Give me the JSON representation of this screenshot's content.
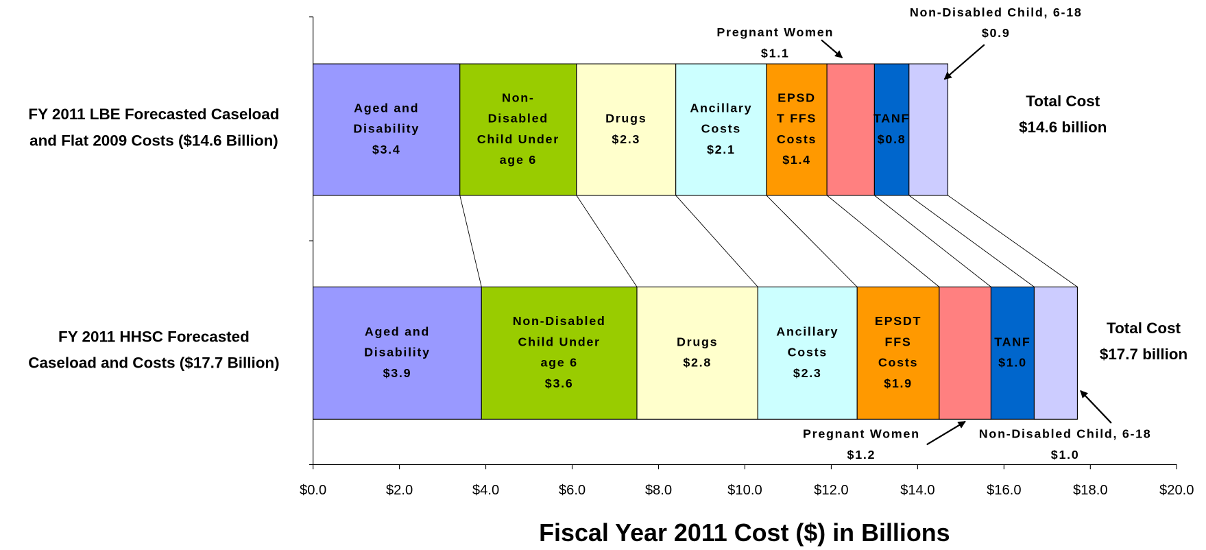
{
  "chart_data": {
    "type": "stacked-barh",
    "xlabel": "Fiscal Year 2011 Cost ($) in Billions",
    "categories": [
      [
        "FY 2011 LBE Forecasted Caseload",
        "and Flat 2009 Costs ($14.6 Billion)"
      ],
      [
        "FY 2011 HHSC Forecasted",
        "Caseload and Costs ($17.7 Billion)"
      ]
    ],
    "totals": [
      [
        "Total Cost",
        "$14.6 billion"
      ],
      [
        "Total Cost",
        "$17.7 billion"
      ]
    ],
    "series": [
      {
        "color": "#9999ff",
        "labels": [
          [
            "Aged and",
            "Disability"
          ],
          [
            "Aged and",
            "Disability"
          ]
        ],
        "values": [
          3.4,
          3.9
        ],
        "value_labels": [
          "$3.4",
          "$3.9"
        ]
      },
      {
        "color": "#99cc00",
        "labels": [
          [
            "Non-",
            "Disabled",
            "Child Under",
            "age 6"
          ],
          [
            "Non-Disabled",
            "Child Under",
            "age 6"
          ]
        ],
        "values": [
          2.7,
          3.6
        ],
        "value_labels": [
          null,
          "$3.6"
        ]
      },
      {
        "color": "#ffffcc",
        "labels": [
          [
            "Drugs"
          ],
          [
            "Drugs"
          ]
        ],
        "values": [
          2.3,
          2.8
        ],
        "value_labels": [
          "$2.3",
          "$2.8"
        ]
      },
      {
        "color": "#ccffff",
        "labels": [
          [
            "Ancillary",
            "Costs"
          ],
          [
            "Ancillary",
            "Costs"
          ]
        ],
        "values": [
          2.1,
          2.3
        ],
        "value_labels": [
          "$2.1",
          "$2.3"
        ]
      },
      {
        "color": "#ff9900",
        "labels": [
          [
            "EPSD",
            "T FFS",
            "Costs"
          ],
          [
            "EPSDT",
            "FFS",
            "Costs"
          ]
        ],
        "values": [
          1.4,
          1.9
        ],
        "value_labels": [
          "$1.4",
          "$1.9"
        ]
      },
      {
        "color": "#ff8080",
        "labels": [
          [
            "Pregnant Women"
          ],
          [
            "Pregnant Women"
          ]
        ],
        "values": [
          1.1,
          1.2
        ],
        "value_labels": [
          "$1.1",
          "$1.2"
        ]
      },
      {
        "color": "#0066cc",
        "labels": [
          [
            "TANF"
          ],
          [
            "TANF"
          ]
        ],
        "values": [
          0.8,
          1.0
        ],
        "value_labels": [
          "$0.8",
          "$1.0"
        ]
      },
      {
        "color": "#ccccff",
        "labels": [
          [
            "Non-Disabled Child, 6-18"
          ],
          [
            "Non-Disabled Child, 6-18"
          ]
        ],
        "values": [
          0.9,
          1.0
        ],
        "value_labels": [
          "$0.9",
          "$1.0"
        ]
      }
    ],
    "xlim": [
      0,
      20
    ],
    "xticks": [
      {
        "value": 0,
        "label": "$0.0"
      },
      {
        "value": 2,
        "label": "$2.0"
      },
      {
        "value": 4,
        "label": "$4.0"
      },
      {
        "value": 6,
        "label": "$6.0"
      },
      {
        "value": 8,
        "label": "$8.0"
      },
      {
        "value": 10,
        "label": "$10.0"
      },
      {
        "value": 12,
        "label": "$12.0"
      },
      {
        "value": 14,
        "label": "$14.0"
      },
      {
        "value": 16,
        "label": "$16.0"
      },
      {
        "value": 18,
        "label": "$18.0"
      },
      {
        "value": 20,
        "label": "$20.0"
      }
    ]
  }
}
